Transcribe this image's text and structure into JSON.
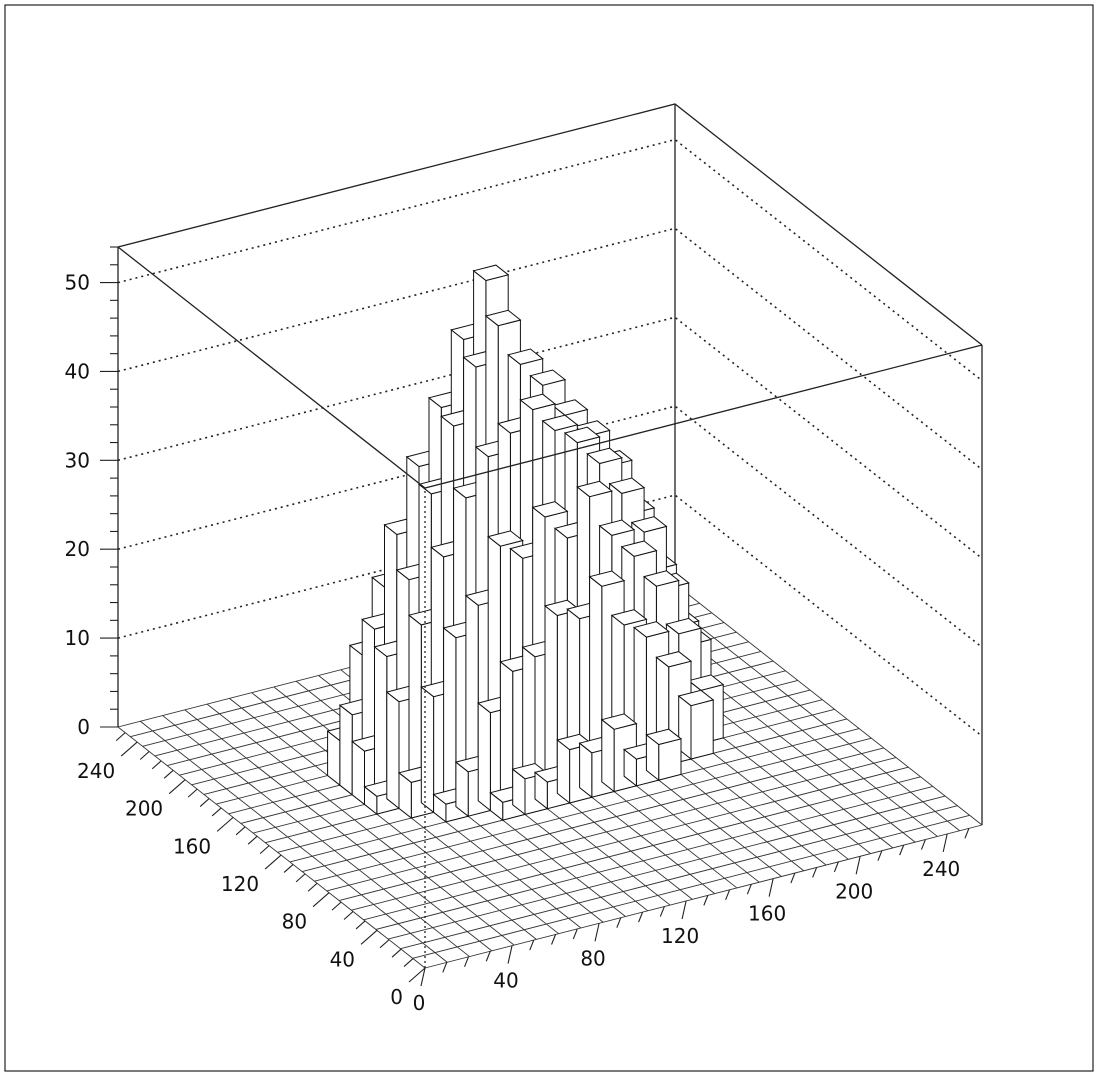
{
  "chart_data": {
    "type": "bar3d",
    "title": "",
    "xlabel": "",
    "ylabel": "",
    "zlabel": "",
    "x_range": [
      0,
      256
    ],
    "y_range": [
      0,
      256
    ],
    "z_range": [
      0,
      54
    ],
    "x_ticks": [
      "0",
      "40",
      "80",
      "120",
      "160",
      "200",
      "240"
    ],
    "y_ticks": [
      "0",
      "40",
      "80",
      "120",
      "160",
      "200",
      "240"
    ],
    "z_ticks": [
      "0",
      "10",
      "20",
      "30",
      "40",
      "50"
    ],
    "bin_size": 10.24,
    "grid": "dotted z-gridlines on back walls",
    "bars_note": "approximate heights read from the plot; triangular mound peaking ~54",
    "bars": [
      {
        "x": 0,
        "y": 4,
        "z": 2
      },
      {
        "x": 0,
        "y": 5,
        "z": 6
      },
      {
        "x": 0,
        "y": 6,
        "z": 9
      },
      {
        "x": 0,
        "y": 7,
        "z": 5
      },
      {
        "x": 1,
        "y": 3,
        "z": 4
      },
      {
        "x": 1,
        "y": 4,
        "z": 12
      },
      {
        "x": 1,
        "y": 5,
        "z": 16
      },
      {
        "x": 1,
        "y": 6,
        "z": 18
      },
      {
        "x": 1,
        "y": 7,
        "z": 14
      },
      {
        "x": 1,
        "y": 8,
        "z": 3
      },
      {
        "x": 2,
        "y": 2,
        "z": 2
      },
      {
        "x": 2,
        "y": 3,
        "z": 13
      },
      {
        "x": 2,
        "y": 4,
        "z": 20
      },
      {
        "x": 2,
        "y": 5,
        "z": 24
      },
      {
        "x": 2,
        "y": 6,
        "z": 28
      },
      {
        "x": 2,
        "y": 7,
        "z": 21
      },
      {
        "x": 2,
        "y": 8,
        "z": 9
      },
      {
        "x": 3,
        "y": 2,
        "z": 5
      },
      {
        "x": 3,
        "y": 3,
        "z": 19
      },
      {
        "x": 3,
        "y": 4,
        "z": 27
      },
      {
        "x": 3,
        "y": 5,
        "z": 33
      },
      {
        "x": 3,
        "y": 6,
        "z": 35
      },
      {
        "x": 3,
        "y": 7,
        "z": 26
      },
      {
        "x": 3,
        "y": 8,
        "z": 12
      },
      {
        "x": 4,
        "y": 1,
        "z": 2
      },
      {
        "x": 4,
        "y": 2,
        "z": 11
      },
      {
        "x": 4,
        "y": 3,
        "z": 22
      },
      {
        "x": 4,
        "y": 4,
        "z": 33
      },
      {
        "x": 4,
        "y": 5,
        "z": 40
      },
      {
        "x": 4,
        "y": 6,
        "z": 41
      },
      {
        "x": 4,
        "y": 7,
        "z": 31
      },
      {
        "x": 4,
        "y": 8,
        "z": 17
      },
      {
        "x": 5,
        "y": 1,
        "z": 4
      },
      {
        "x": 5,
        "y": 2,
        "z": 15
      },
      {
        "x": 5,
        "y": 3,
        "z": 28
      },
      {
        "x": 5,
        "y": 4,
        "z": 37
      },
      {
        "x": 5,
        "y": 5,
        "z": 46
      },
      {
        "x": 5,
        "y": 6,
        "z": 48
      },
      {
        "x": 5,
        "y": 7,
        "z": 35
      },
      {
        "x": 5,
        "y": 8,
        "z": 19
      },
      {
        "x": 6,
        "y": 1,
        "z": 3
      },
      {
        "x": 6,
        "y": 2,
        "z": 16
      },
      {
        "x": 6,
        "y": 3,
        "z": 26
      },
      {
        "x": 6,
        "y": 4,
        "z": 39
      },
      {
        "x": 6,
        "y": 5,
        "z": 50
      },
      {
        "x": 6,
        "y": 6,
        "z": 54
      },
      {
        "x": 6,
        "y": 7,
        "z": 38
      },
      {
        "x": 6,
        "y": 8,
        "z": 21
      },
      {
        "x": 7,
        "y": 1,
        "z": 6
      },
      {
        "x": 7,
        "y": 2,
        "z": 20
      },
      {
        "x": 7,
        "y": 3,
        "z": 30
      },
      {
        "x": 7,
        "y": 4,
        "z": 41
      },
      {
        "x": 7,
        "y": 5,
        "z": 45
      },
      {
        "x": 7,
        "y": 6,
        "z": 43
      },
      {
        "x": 7,
        "y": 7,
        "z": 33
      },
      {
        "x": 7,
        "y": 8,
        "z": 19
      },
      {
        "x": 8,
        "y": 1,
        "z": 5
      },
      {
        "x": 8,
        "y": 2,
        "z": 19
      },
      {
        "x": 8,
        "y": 3,
        "z": 27
      },
      {
        "x": 8,
        "y": 4,
        "z": 38
      },
      {
        "x": 8,
        "y": 5,
        "z": 42
      },
      {
        "x": 8,
        "y": 6,
        "z": 40
      },
      {
        "x": 8,
        "y": 7,
        "z": 30
      },
      {
        "x": 8,
        "y": 8,
        "z": 16
      },
      {
        "x": 9,
        "y": 1,
        "z": 7
      },
      {
        "x": 9,
        "y": 2,
        "z": 22
      },
      {
        "x": 9,
        "y": 3,
        "z": 31
      },
      {
        "x": 9,
        "y": 4,
        "z": 36
      },
      {
        "x": 9,
        "y": 5,
        "z": 38
      },
      {
        "x": 9,
        "y": 6,
        "z": 35
      },
      {
        "x": 9,
        "y": 7,
        "z": 25
      },
      {
        "x": 9,
        "y": 8,
        "z": 14
      },
      {
        "x": 10,
        "y": 1,
        "z": 3
      },
      {
        "x": 10,
        "y": 2,
        "z": 17
      },
      {
        "x": 10,
        "y": 3,
        "z": 26
      },
      {
        "x": 10,
        "y": 4,
        "z": 33
      },
      {
        "x": 10,
        "y": 5,
        "z": 35
      },
      {
        "x": 10,
        "y": 6,
        "z": 31
      },
      {
        "x": 10,
        "y": 7,
        "z": 22
      },
      {
        "x": 10,
        "y": 8,
        "z": 12
      },
      {
        "x": 11,
        "y": 1,
        "z": 4
      },
      {
        "x": 11,
        "y": 2,
        "z": 15
      },
      {
        "x": 11,
        "y": 3,
        "z": 23
      },
      {
        "x": 11,
        "y": 4,
        "z": 29
      },
      {
        "x": 11,
        "y": 5,
        "z": 31
      },
      {
        "x": 11,
        "y": 6,
        "z": 27
      },
      {
        "x": 11,
        "y": 7,
        "z": 18
      },
      {
        "x": 11,
        "y": 8,
        "z": 9
      },
      {
        "x": 12,
        "y": 2,
        "z": 11
      },
      {
        "x": 12,
        "y": 3,
        "z": 19
      },
      {
        "x": 12,
        "y": 4,
        "z": 24
      },
      {
        "x": 12,
        "y": 5,
        "z": 25
      },
      {
        "x": 12,
        "y": 6,
        "z": 21
      },
      {
        "x": 12,
        "y": 7,
        "z": 14
      },
      {
        "x": 12,
        "y": 8,
        "z": 6
      },
      {
        "x": 13,
        "y": 2,
        "z": 6
      },
      {
        "x": 13,
        "y": 3,
        "z": 13
      },
      {
        "x": 13,
        "y": 4,
        "z": 17
      },
      {
        "x": 13,
        "y": 5,
        "z": 18
      },
      {
        "x": 13,
        "y": 6,
        "z": 15
      },
      {
        "x": 13,
        "y": 7,
        "z": 9
      },
      {
        "x": 13,
        "y": 8,
        "z": 3
      },
      {
        "x": 14,
        "y": 3,
        "z": 6
      },
      {
        "x": 14,
        "y": 4,
        "z": 10
      },
      {
        "x": 14,
        "y": 5,
        "z": 11
      },
      {
        "x": 14,
        "y": 6,
        "z": 8
      },
      {
        "x": 14,
        "y": 7,
        "z": 4
      }
    ]
  }
}
